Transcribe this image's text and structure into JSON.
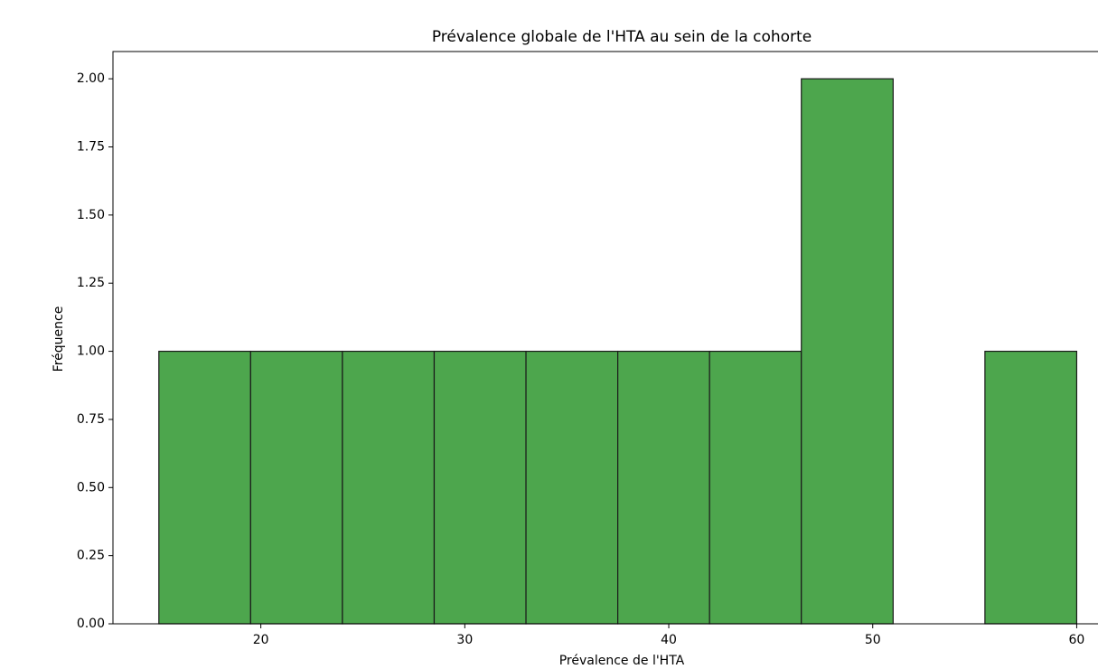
{
  "chart_data": {
    "type": "histogram",
    "title": "Prévalence globale de l'HTA au sein de la cohorte",
    "x_label": "Prévalence de l'HTA",
    "y_label": "Fréquence",
    "bins": [
      15,
      19.5,
      24,
      28.5,
      33,
      37.5,
      42,
      46.5,
      51,
      55.5,
      60
    ],
    "counts": [
      1,
      1,
      1,
      1,
      1,
      1,
      1,
      2,
      0,
      1
    ],
    "color": "#4da64d",
    "edgecolor": "#1a1a1a",
    "xlim": [
      12.75,
      61
    ],
    "xticks": [
      20,
      30,
      40,
      50,
      60
    ],
    "ylim": [
      0,
      2.1
    ],
    "yticks": [
      {
        "value": 0,
        "label": "0.00"
      },
      {
        "value": 0.25,
        "label": "0.25"
      },
      {
        "value": 0.5,
        "label": "0.50"
      },
      {
        "value": 0.75,
        "label": "0.75"
      },
      {
        "value": 1,
        "label": "1.00"
      },
      {
        "value": 1.25,
        "label": "1.25"
      },
      {
        "value": 1.5,
        "label": "1.50"
      },
      {
        "value": 1.75,
        "label": "1.75"
      },
      {
        "value": 2,
        "label": "2.00"
      }
    ],
    "grid": false
  }
}
